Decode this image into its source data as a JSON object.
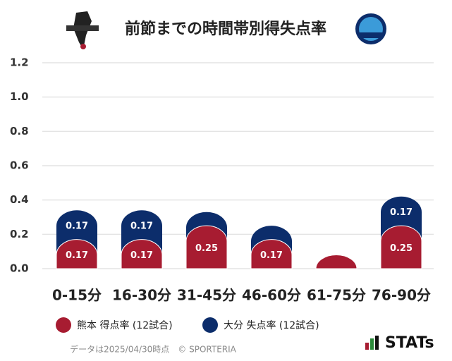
{
  "chart_data": {
    "type": "stacked_bar",
    "title": "前節までの時間帯別得失点率",
    "categories": [
      "0-15分",
      "16-30分",
      "31-45分",
      "46-60分",
      "61-75分",
      "76-90分"
    ],
    "series": [
      {
        "name": "熊本 得点率 (12試合)",
        "color": "#a71c31",
        "values": [
          0.17,
          0.17,
          0.25,
          0.17,
          0.08,
          0.25
        ],
        "value_labels": [
          "0.17",
          "0.17",
          "0.25",
          "0.17",
          null,
          "0.25"
        ]
      },
      {
        "name": "大分 失点率 (12試合)",
        "color": "#0c2d6b",
        "values": [
          0.17,
          0.17,
          0.08,
          0.08,
          0,
          0.17
        ],
        "value_labels": [
          "0.17",
          "0.17",
          null,
          null,
          null,
          "0.17"
        ]
      }
    ],
    "ylim": [
      0,
      1.2
    ],
    "yticks": [
      {
        "value": 0,
        "label": "0.0"
      },
      0.2,
      0.4,
      0.6,
      0.8,
      {
        "value": 1,
        "label": "1.0"
      },
      1.2
    ],
    "grid": true,
    "legend": "bottom",
    "footnote": "データは2025/04/30時点　© SPORTERIA",
    "brand": "STATs"
  }
}
